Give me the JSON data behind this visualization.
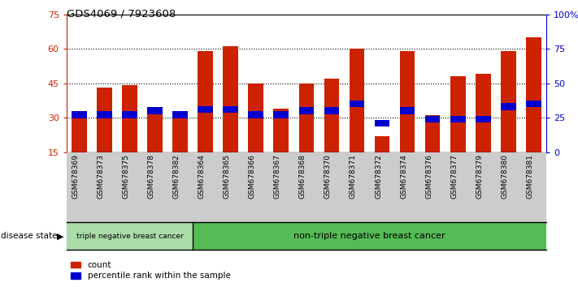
{
  "title": "GDS4069 / 7923608",
  "samples": [
    "GSM678369",
    "GSM678373",
    "GSM678375",
    "GSM678378",
    "GSM678382",
    "GSM678364",
    "GSM678365",
    "GSM678366",
    "GSM678367",
    "GSM678368",
    "GSM678370",
    "GSM678371",
    "GSM678372",
    "GSM678374",
    "GSM678376",
    "GSM678377",
    "GSM678379",
    "GSM678380",
    "GSM678381"
  ],
  "counts": [
    32,
    43,
    44,
    32,
    32,
    59,
    61,
    45,
    34,
    45,
    47,
    60,
    22,
    59,
    31,
    48,
    49,
    59,
    65
  ],
  "percentiles": [
    27,
    27,
    27,
    30,
    27,
    31,
    31,
    27,
    27,
    30,
    30,
    35,
    21,
    30,
    24,
    24,
    24,
    33,
    35
  ],
  "triple_negative_count": 5,
  "ylim_left": [
    15,
    75
  ],
  "ylim_right": [
    0,
    100
  ],
  "yticks_left": [
    15,
    30,
    45,
    60,
    75
  ],
  "yticks_right": [
    0,
    25,
    50,
    75,
    100
  ],
  "bar_color": "#cc2200",
  "percentile_color": "#0000cc",
  "triple_neg_color": "#aaddaa",
  "non_triple_neg_color": "#55bb55",
  "group_label_triple": "triple negative breast cancer",
  "group_label_non_triple": "non-triple negative breast cancer",
  "disease_state_label": "disease state",
  "legend_count": "count",
  "legend_percentile": "percentile rank within the sample",
  "tick_color_left": "#cc2200",
  "tick_color_right": "#0000cc",
  "xtick_bg_color": "#cccccc"
}
